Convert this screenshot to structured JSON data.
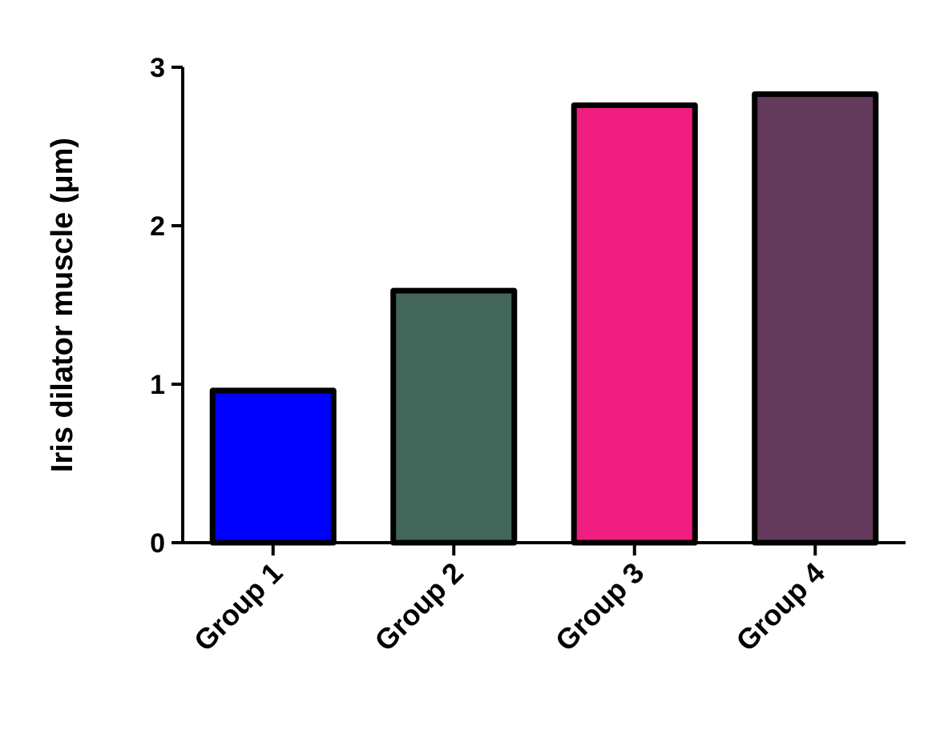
{
  "chart_data": {
    "type": "bar",
    "y_label": "Iris dilator muscle (μm)",
    "categories": [
      "Group 1",
      "Group 2",
      "Group 3",
      "Group 4"
    ],
    "values": [
      0.96,
      1.59,
      2.76,
      2.83
    ],
    "colors": [
      "#0000ff",
      "#42665a",
      "#f01e7e",
      "#633a5c"
    ],
    "ylim": [
      0,
      3
    ],
    "yticks": [
      0,
      1,
      2,
      3
    ],
    "grid": false
  }
}
